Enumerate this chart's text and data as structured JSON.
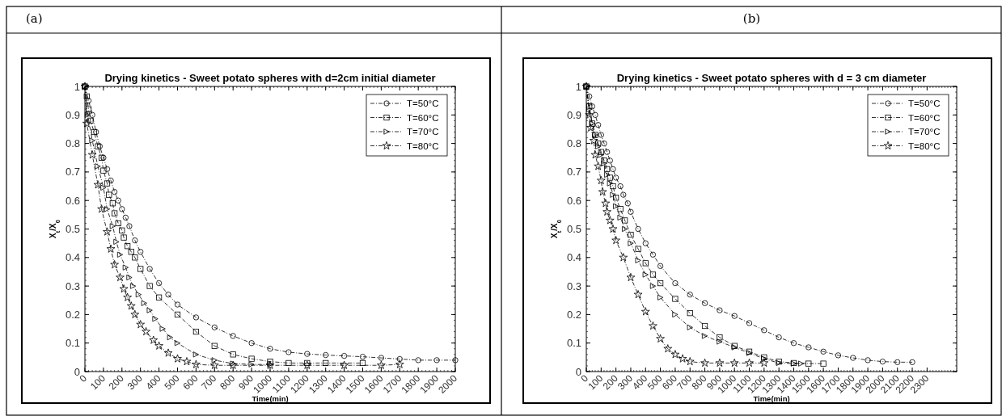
{
  "chart_data": [
    {
      "type": "line",
      "title": "Drying kinetics - Sweet potato spheres with d=2cm initial diameter",
      "xlabel": "Time(min)",
      "ylabel": "X$_{t}$/X$_{0}$",
      "annotations": [
        "(a)"
      ],
      "xlim": [
        0,
        2000
      ],
      "xticks": [
        0,
        100,
        200,
        300,
        400,
        500,
        600,
        700,
        800,
        900,
        1000,
        1100,
        1200,
        1300,
        1400,
        1500,
        1600,
        1700,
        1800,
        1900,
        2000
      ],
      "ylim": [
        0,
        1
      ],
      "yticks": [
        0,
        0.1,
        0.2,
        0.3,
        0.4,
        0.5,
        0.6,
        0.7,
        0.8,
        0.9,
        1
      ],
      "grid": false,
      "legend": "top right",
      "line_style": "dashed",
      "series": [
        {
          "name": "T=50°C",
          "color": "#000000",
          "marker": "circle",
          "x": [
            0,
            20,
            40,
            60,
            80,
            100,
            120,
            140,
            160,
            180,
            200,
            220,
            240,
            270,
            300,
            350,
            400,
            450,
            500,
            600,
            700,
            800,
            900,
            1000,
            1100,
            1200,
            1300,
            1400,
            1500,
            1600,
            1700,
            1800,
            1900,
            2000
          ],
          "values": [
            1,
            0.95,
            0.9,
            0.84,
            0.79,
            0.75,
            0.71,
            0.67,
            0.63,
            0.6,
            0.57,
            0.54,
            0.51,
            0.46,
            0.42,
            0.36,
            0.31,
            0.27,
            0.235,
            0.19,
            0.155,
            0.125,
            0.1,
            0.08,
            0.068,
            0.062,
            0.058,
            0.055,
            0.052,
            0.048,
            0.044,
            0.04,
            0.04,
            0.04
          ]
        },
        {
          "name": "T=60°C",
          "color": "#000000",
          "marker": "square",
          "x": [
            0,
            10,
            20,
            30,
            50,
            70,
            90,
            100,
            120,
            130,
            150,
            160,
            180,
            200,
            210,
            230,
            250,
            270,
            300,
            350,
            400,
            500,
            600,
            700,
            800,
            900,
            1000,
            1100,
            1200,
            1300,
            1500
          ],
          "values": [
            1,
            0.965,
            0.92,
            0.88,
            0.84,
            0.79,
            0.75,
            0.705,
            0.66,
            0.62,
            0.59,
            0.555,
            0.52,
            0.495,
            0.47,
            0.44,
            0.42,
            0.4,
            0.36,
            0.3,
            0.26,
            0.2,
            0.14,
            0.09,
            0.06,
            0.045,
            0.035,
            0.03,
            0.03,
            0.03,
            0.03
          ]
        },
        {
          "name": "T=70°C",
          "color": "#000000",
          "marker": "triangle",
          "x": [
            0,
            15,
            40,
            70,
            100,
            120,
            150,
            170,
            190,
            220,
            240,
            260,
            290,
            320,
            350,
            380,
            420,
            460,
            500,
            600,
            700,
            800,
            900,
            1000
          ],
          "values": [
            1,
            0.9,
            0.81,
            0.72,
            0.645,
            0.57,
            0.51,
            0.455,
            0.41,
            0.365,
            0.33,
            0.3,
            0.27,
            0.24,
            0.215,
            0.185,
            0.15,
            0.12,
            0.1,
            0.06,
            0.04,
            0.028,
            0.025,
            0.025
          ]
        },
        {
          "name": "T=80°C",
          "color": "#000000",
          "marker": "star",
          "x": [
            0,
            10,
            40,
            70,
            90,
            120,
            140,
            160,
            190,
            210,
            230,
            250,
            270,
            300,
            330,
            370,
            400,
            450,
            500,
            550,
            600,
            700,
            800,
            1000,
            1200,
            1400,
            1600,
            1700
          ],
          "values": [
            1,
            0.87,
            0.76,
            0.655,
            0.57,
            0.49,
            0.43,
            0.375,
            0.33,
            0.29,
            0.26,
            0.23,
            0.2,
            0.165,
            0.14,
            0.11,
            0.09,
            0.065,
            0.045,
            0.035,
            0.025,
            0.022,
            0.022,
            0.022,
            0.022,
            0.022,
            0.022,
            0.025
          ]
        }
      ]
    },
    {
      "type": "line",
      "title": "Drying kinetics - Sweet potato spheres with d = 3 cm diameter",
      "xlabel": "Time(min)",
      "ylabel": "X$_{t}$/X$_{0}$",
      "annotations": [
        "(b)"
      ],
      "xlim": [
        0,
        2500
      ],
      "xticks": [
        0,
        100,
        200,
        300,
        400,
        500,
        600,
        700,
        800,
        900,
        1000,
        1100,
        1200,
        1300,
        1400,
        1500,
        1600,
        1700,
        1800,
        1900,
        2000,
        2100,
        2200,
        2300
      ],
      "ylim": [
        0,
        1
      ],
      "yticks": [
        0,
        0.1,
        0.2,
        0.3,
        0.4,
        0.5,
        0.6,
        0.7,
        0.8,
        0.9,
        1
      ],
      "grid": false,
      "legend": "top right",
      "line_style": "dashed",
      "series": [
        {
          "name": "T=50°C",
          "color": "#000000",
          "marker": "circle",
          "x": [
            0,
            20,
            40,
            60,
            80,
            100,
            120,
            140,
            160,
            180,
            200,
            230,
            250,
            280,
            300,
            350,
            400,
            450,
            500,
            600,
            700,
            800,
            900,
            1000,
            1100,
            1200,
            1300,
            1400,
            1500,
            1600,
            1700,
            1800,
            1900,
            2000,
            2100,
            2200
          ],
          "values": [
            1,
            0.965,
            0.93,
            0.9,
            0.865,
            0.83,
            0.8,
            0.77,
            0.74,
            0.71,
            0.68,
            0.65,
            0.62,
            0.59,
            0.56,
            0.5,
            0.45,
            0.41,
            0.37,
            0.31,
            0.27,
            0.24,
            0.215,
            0.195,
            0.17,
            0.145,
            0.12,
            0.1,
            0.085,
            0.07,
            0.057,
            0.048,
            0.04,
            0.035,
            0.033,
            0.033
          ]
        },
        {
          "name": "T=60°C",
          "color": "#000000",
          "marker": "square",
          "x": [
            0,
            20,
            40,
            60,
            80,
            100,
            120,
            140,
            160,
            180,
            200,
            230,
            260,
            300,
            350,
            400,
            450,
            500,
            600,
            700,
            800,
            900,
            1000,
            1100,
            1200,
            1300,
            1400,
            1500,
            1600
          ],
          "values": [
            1,
            0.93,
            0.87,
            0.83,
            0.8,
            0.77,
            0.74,
            0.71,
            0.68,
            0.65,
            0.61,
            0.57,
            0.53,
            0.48,
            0.43,
            0.38,
            0.34,
            0.31,
            0.255,
            0.205,
            0.16,
            0.12,
            0.09,
            0.07,
            0.05,
            0.035,
            0.03,
            0.028,
            0.028
          ]
        },
        {
          "name": "T=70°C",
          "color": "#000000",
          "marker": "triangle",
          "x": [
            0,
            20,
            40,
            60,
            80,
            100,
            120,
            140,
            160,
            180,
            200,
            230,
            260,
            300,
            350,
            400,
            450,
            500,
            600,
            700,
            800,
            900,
            1000,
            1100,
            1200,
            1300,
            1400,
            1450
          ],
          "values": [
            1,
            0.92,
            0.87,
            0.83,
            0.79,
            0.76,
            0.73,
            0.69,
            0.66,
            0.62,
            0.58,
            0.54,
            0.5,
            0.45,
            0.39,
            0.34,
            0.3,
            0.26,
            0.2,
            0.155,
            0.125,
            0.105,
            0.085,
            0.065,
            0.045,
            0.03,
            0.028,
            0.028
          ]
        },
        {
          "name": "T=80°C",
          "color": "#000000",
          "marker": "star",
          "x": [
            0,
            20,
            30,
            50,
            60,
            80,
            100,
            110,
            130,
            140,
            160,
            180,
            200,
            250,
            300,
            350,
            400,
            450,
            500,
            550,
            600,
            650,
            700,
            800,
            900,
            1000,
            1100,
            1200
          ],
          "values": [
            1,
            0.9,
            0.855,
            0.81,
            0.76,
            0.72,
            0.67,
            0.63,
            0.59,
            0.56,
            0.53,
            0.5,
            0.46,
            0.4,
            0.33,
            0.27,
            0.21,
            0.16,
            0.115,
            0.08,
            0.06,
            0.045,
            0.035,
            0.03,
            0.03,
            0.03,
            0.03,
            0.03
          ]
        }
      ]
    }
  ]
}
